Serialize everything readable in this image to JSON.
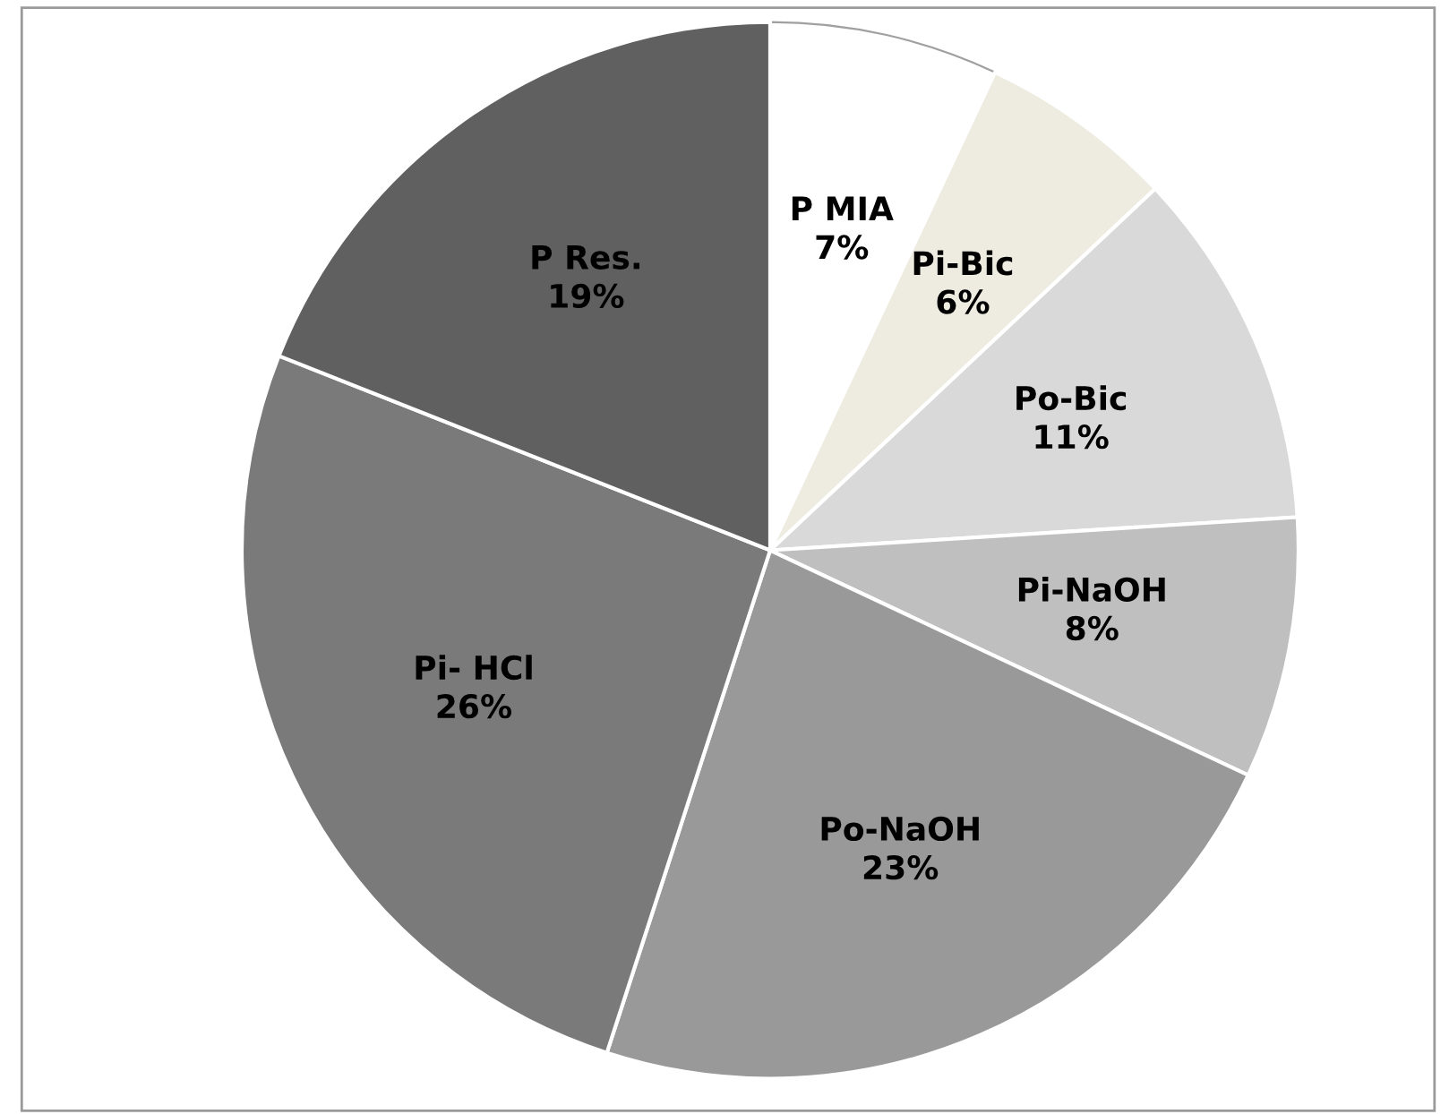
{
  "chart_data": {
    "type": "pie",
    "categories": [
      "P MIA",
      "Pi-Bic",
      "Po-Bic",
      "Pi-NaOH",
      "Po-NaOH",
      "Pi- HCl",
      "P Res."
    ],
    "values": [
      7,
      6,
      11,
      8,
      23,
      26,
      19
    ],
    "colors": [
      "#ffffff",
      "#eeece1",
      "#d9d9d9",
      "#bfbfbf",
      "#999999",
      "#7a7a7a",
      "#606060"
    ],
    "value_labels": [
      "7%",
      "6%",
      "11%",
      "8%",
      "23%",
      "26%",
      "19%"
    ],
    "legend": false
  }
}
